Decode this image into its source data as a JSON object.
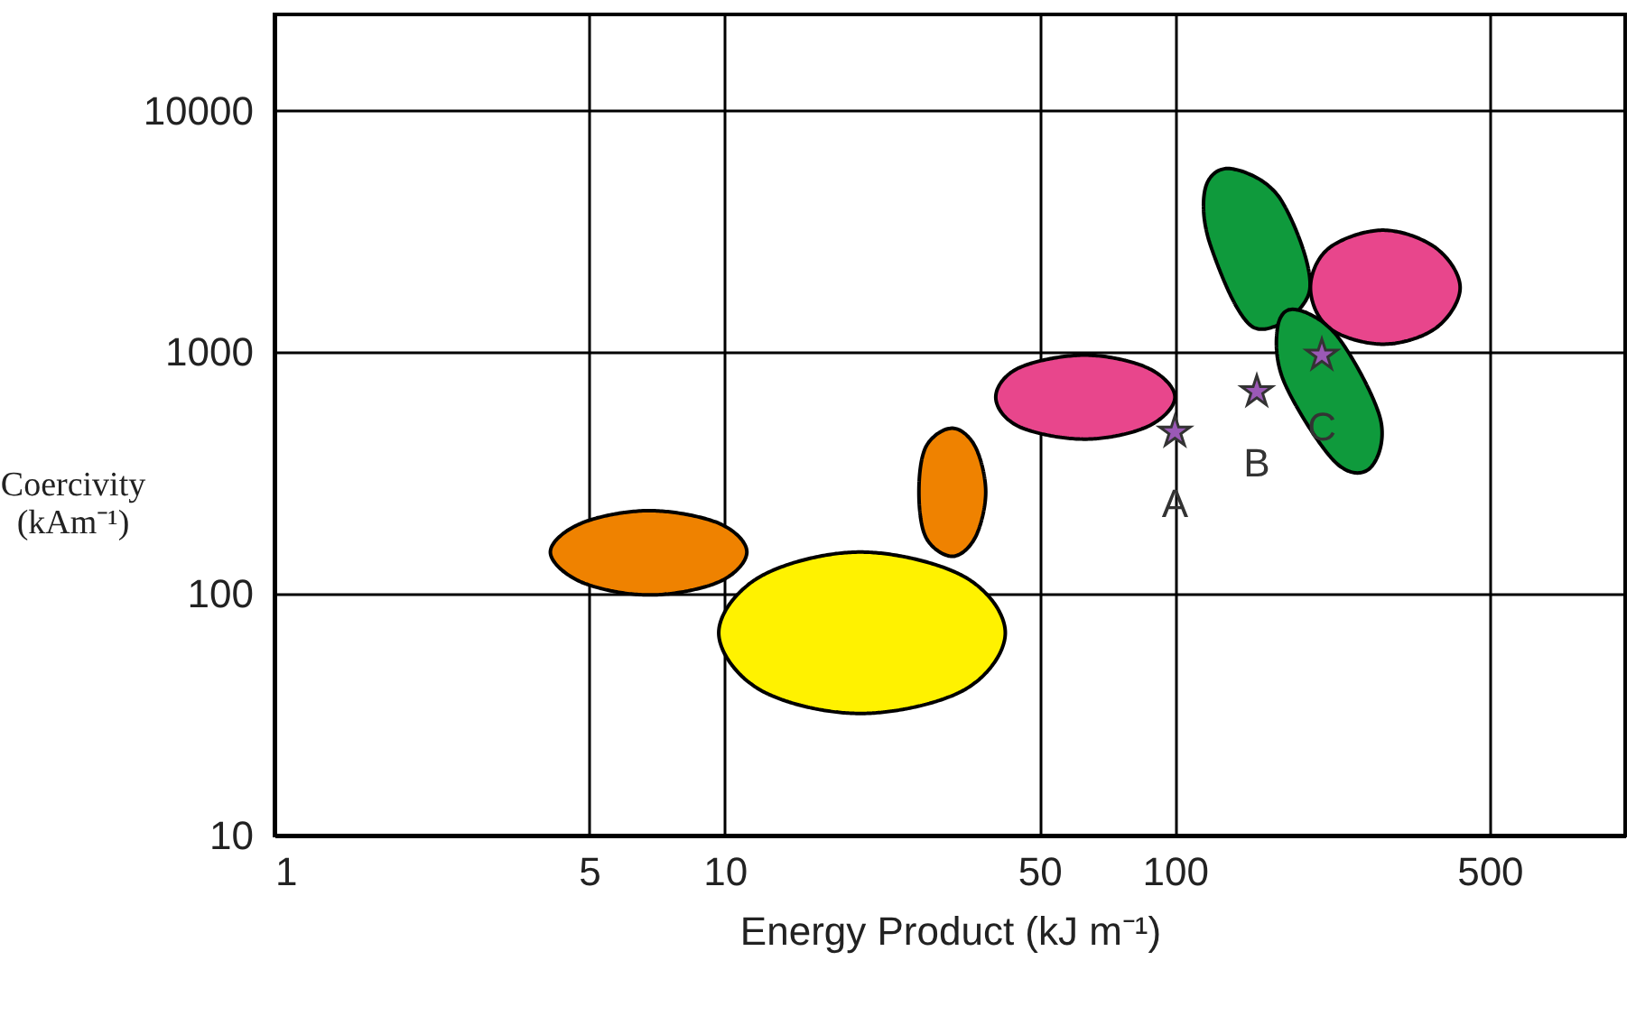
{
  "chart_data": {
    "type": "area",
    "xlabel": "Energy Product (kJ m⁻¹)",
    "ylabel": "Coercivity (kAm⁻¹)",
    "log": "xy",
    "grid": true,
    "xlim": [
      1,
      1000
    ],
    "xticks": [
      1,
      5,
      10,
      50,
      100,
      500
    ],
    "ylim": [
      10,
      25000
    ],
    "yticks": [
      10,
      100,
      1000,
      10000
    ],
    "series": [
      {
        "color": "#ef8200",
        "x": [
          11.2,
          9.7,
          6.8,
          4.8,
          4.1,
          4.8,
          6.8,
          9.7
        ],
        "values": [
          149,
          196,
          221,
          196,
          149,
          112,
          99,
          112
        ]
      },
      {
        "color": "#fff200",
        "x": [
          42,
          34,
          20,
          12,
          9.7,
          12,
          20,
          34
        ],
        "values": [
          69,
          118,
          149,
          118,
          69,
          40,
          32,
          40
        ]
      },
      {
        "color": "#ef8200",
        "x": [
          38,
          36,
          32,
          28,
          27,
          28,
          32,
          36
        ],
        "values": [
          264,
          407,
          485,
          407,
          264,
          171,
          143,
          171
        ]
      },
      {
        "color": "#e8468c",
        "x": [
          100,
          87,
          63,
          45,
          40,
          45,
          63,
          87
        ],
        "values": [
          652,
          861,
          973,
          861,
          652,
          493,
          437,
          493
        ]
      },
      {
        "color": "#0f9a3c",
        "x": [
          134,
          172,
          199,
          150,
          120,
          117
        ],
        "values": [
          5740,
          4270,
          1790,
          1263,
          2762,
          4820
        ]
      },
      {
        "color": "#e8468c",
        "x": [
          430,
          380,
          290,
          220,
          200,
          220,
          290,
          380
        ],
        "values": [
          1850,
          2700,
          3200,
          2700,
          1850,
          1260,
          1080,
          1260
        ]
      },
      {
        "color": "#0f9a3c",
        "x": [
          185,
          230,
          286,
          271,
          226,
          175,
          169
        ],
        "values": [
          1503,
          1157,
          529,
          331,
          354,
          749,
          1263
        ]
      },
      {
        "type": "scatter",
        "color": "#9b59b6",
        "marker": "star",
        "x": [
          100,
          152,
          212
        ],
        "values": [
          468,
          687,
          973
        ]
      }
    ],
    "annotations": [
      {
        "text": "A",
        "x": 100,
        "y": 468
      },
      {
        "text": "B",
        "x": 152,
        "y": 687
      },
      {
        "text": "C",
        "x": 212,
        "y": 973
      }
    ]
  }
}
